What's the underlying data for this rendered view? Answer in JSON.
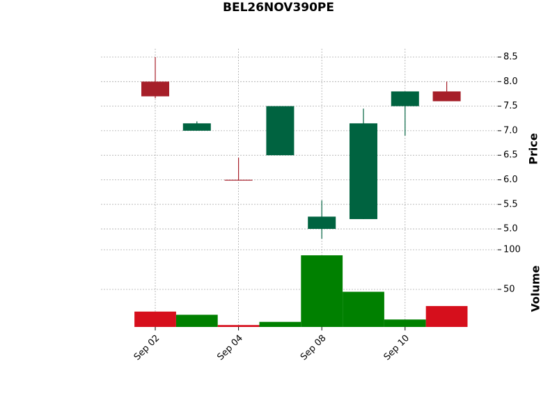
{
  "chart_data": {
    "type": "candlestick",
    "title": "BEL26NOV390PE",
    "categories": [
      "Sep 02",
      null,
      "Sep 04",
      null,
      "Sep 08",
      null,
      "Sep 10",
      null
    ],
    "open": [
      8.0,
      7.0,
      6.0,
      6.5,
      5.0,
      5.2,
      7.5,
      7.8
    ],
    "high": [
      8.5,
      7.19,
      6.45,
      7.5,
      5.58,
      7.45,
      7.8,
      8.0
    ],
    "low": [
      7.66,
      7.0,
      6.0,
      6.5,
      4.8,
      5.2,
      6.9,
      7.6
    ],
    "close": [
      7.7,
      7.15,
      6.0,
      7.5,
      5.25,
      7.15,
      7.8,
      7.6
    ],
    "up_color": "#006340",
    "down_color": "#a61f29",
    "ylabel": "Price",
    "ylim": [
      4.59,
      8.67
    ],
    "yticks": [
      {
        "value": 5,
        "label": "5.0"
      },
      5.5,
      {
        "value": 6,
        "label": "6.0"
      },
      6.5,
      {
        "value": 7,
        "label": "7.0"
      },
      7.5,
      {
        "value": 8,
        "label": "8.0"
      },
      8.5
    ],
    "grid": true,
    "volume": {
      "label": "Volume",
      "values": [
        22,
        18,
        5,
        9,
        93,
        47,
        12,
        29
      ],
      "up_color": "#008000",
      "down_color": "#d60f1c",
      "ylim": [
        2.6,
        100.9
      ],
      "yticks": [
        50,
        100
      ]
    }
  }
}
